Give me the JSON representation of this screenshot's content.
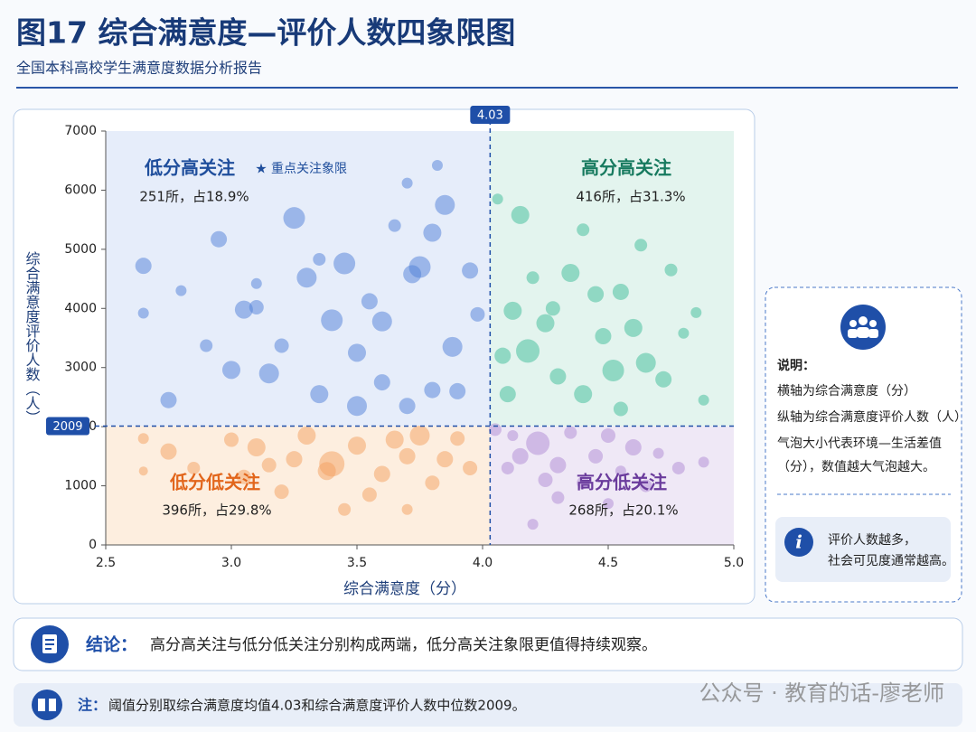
{
  "chart_data": {
    "type": "bubble",
    "title": "图17  综合满意度—评价人数四象限图",
    "subtitle": "全国本科高校学生满意度数据分析报告",
    "x_label": "综合满意度（分）",
    "y_label": "综合满意度评价人数（人）",
    "xlim": [
      2.5,
      5.0
    ],
    "xticks": [
      2.5,
      {
        "value": 3,
        "label": "3.0"
      },
      3.5,
      {
        "value": 4,
        "label": "4.0"
      },
      4.5,
      {
        "value": 5,
        "label": "5.0"
      }
    ],
    "ylim": [
      0,
      7000
    ],
    "yticks": [
      0,
      1000,
      2000,
      3000,
      4000,
      5000,
      6000,
      7000
    ],
    "thresholds": {
      "x": 4.03,
      "y": 2009
    },
    "series": [
      {
        "name": "低分高关注",
        "tag": "重点关注象限",
        "count_label": "251所，占18.9%",
        "color": "#4f7fd8",
        "background": "#e6edfa",
        "label_color": "#1f4e9c",
        "x": [
          2.65,
          2.65,
          2.8,
          2.9,
          2.95,
          3.0,
          3.05,
          3.1,
          3.2,
          3.25,
          3.3,
          3.35,
          3.4,
          3.45,
          3.5,
          3.55,
          3.6,
          3.6,
          3.65,
          3.7,
          3.72,
          3.8,
          3.8,
          3.82,
          3.85,
          3.88,
          3.95,
          3.98,
          2.75,
          3.15,
          3.35,
          3.5,
          3.7,
          3.9,
          3.1,
          3.75
        ],
        "values": [
          4720,
          3920,
          4300,
          3370,
          5170,
          2960,
          3980,
          4420,
          3370,
          5530,
          4520,
          4830,
          3800,
          4760,
          3250,
          4120,
          2750,
          3780,
          5400,
          6120,
          4580,
          5280,
          2620,
          6420,
          5750,
          3350,
          4640,
          3900,
          2450,
          2900,
          2550,
          2350,
          2350,
          2600,
          4020,
          4700
        ],
        "sizes": [
          9,
          6,
          6,
          7,
          9,
          10,
          10,
          6,
          8,
          12,
          11,
          7,
          12,
          12,
          10,
          9,
          9,
          11,
          7,
          6,
          10,
          10,
          9,
          6,
          11,
          11,
          9,
          8,
          9,
          11,
          10,
          11,
          9,
          9,
          8,
          12
        ]
      },
      {
        "name": "高分高关注",
        "count_label": "416所，占31.3%",
        "color": "#3dbb98",
        "background": "#e3f4ee",
        "label_color": "#177a5f",
        "x": [
          4.06,
          4.12,
          4.15,
          4.18,
          4.2,
          4.25,
          4.3,
          4.35,
          4.4,
          4.45,
          4.48,
          4.52,
          4.55,
          4.6,
          4.63,
          4.65,
          4.72,
          4.75,
          4.8,
          4.85,
          4.88,
          4.1,
          4.28,
          4.55,
          4.08,
          4.4
        ],
        "values": [
          5850,
          3960,
          5580,
          3280,
          4520,
          3750,
          2850,
          4600,
          5330,
          4240,
          3530,
          2950,
          4280,
          3670,
          5070,
          3080,
          2800,
          4650,
          3580,
          3930,
          2450,
          2550,
          4000,
          2300,
          3200,
          2550
        ],
        "sizes": [
          6,
          10,
          10,
          13,
          7,
          10,
          9,
          10,
          7,
          9,
          9,
          12,
          9,
          10,
          7,
          11,
          9,
          7,
          6,
          6,
          6,
          9,
          8,
          8,
          9,
          10
        ]
      },
      {
        "name": "低分低关注",
        "count_label": "396所，占29.8%",
        "color": "#f4a060",
        "background": "#fdeedf",
        "label_color": "#e2661c",
        "x": [
          2.65,
          2.65,
          2.75,
          2.85,
          3.0,
          3.05,
          3.1,
          3.2,
          3.25,
          3.3,
          3.38,
          3.4,
          3.5,
          3.55,
          3.6,
          3.65,
          3.7,
          3.75,
          3.8,
          3.85,
          3.9,
          3.95,
          3.45,
          3.7,
          3.15
        ],
        "values": [
          1800,
          1250,
          1580,
          1300,
          1780,
          1150,
          1650,
          900,
          1450,
          1850,
          1250,
          1370,
          1680,
          850,
          1200,
          1780,
          1500,
          1850,
          1050,
          1450,
          1800,
          1300,
          600,
          600,
          1350
        ],
        "sizes": [
          6,
          5,
          9,
          7,
          8,
          8,
          10,
          8,
          9,
          10,
          10,
          14,
          10,
          8,
          9,
          10,
          9,
          11,
          8,
          9,
          8,
          8,
          7,
          6,
          8
        ]
      },
      {
        "name": "高分低关注",
        "count_label": "268所，占20.1%",
        "color": "#b08ad4",
        "background": "#efe8f6",
        "label_color": "#6a3b9c",
        "x": [
          4.05,
          4.1,
          4.15,
          4.22,
          4.25,
          4.3,
          4.35,
          4.4,
          4.45,
          4.5,
          4.55,
          4.6,
          4.65,
          4.7,
          4.78,
          4.2,
          4.3,
          4.5,
          4.88,
          4.12
        ],
        "values": [
          1950,
          1300,
          1500,
          1720,
          1100,
          1350,
          1900,
          1050,
          1500,
          1850,
          1250,
          1650,
          1000,
          1550,
          1300,
          350,
          800,
          700,
          1400,
          1850
        ],
        "sizes": [
          7,
          7,
          9,
          13,
          8,
          9,
          7,
          7,
          8,
          8,
          6,
          9,
          7,
          6,
          7,
          6,
          7,
          6,
          6,
          6
        ]
      }
    ]
  },
  "notes": {
    "title": "说明：",
    "lines": [
      "横轴为综合满意度（分）",
      "纵轴为综合满意度评价人数（人）",
      "气泡大小代表环境—生活差值",
      "（分），数值越大气泡越大。"
    ],
    "tip": [
      "评价人数越多，",
      "社会可见度通常越高。"
    ]
  },
  "conclusion": {
    "label": "结论：",
    "text": "高分高关注与低分低关注分别构成两端，低分高关注象限更值得持续观察。"
  },
  "footnote": {
    "label": "注：",
    "text": "阈值分别取综合满意度均值4.03和综合满意度评价人数中位数2009。"
  },
  "watermark": "公众号 · 教育的话-廖老师"
}
